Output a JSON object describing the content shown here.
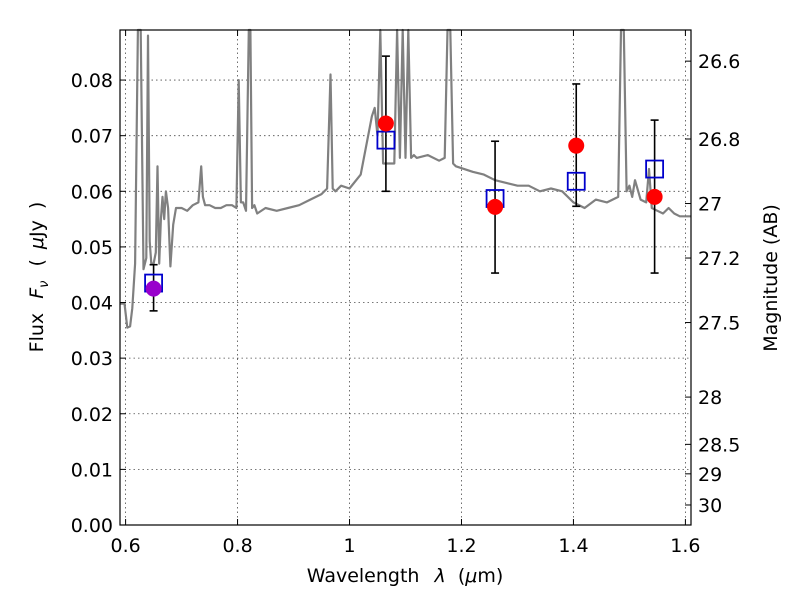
{
  "chart_data": {
    "type": "scatter",
    "xlabel_prefix": "Wavelength",
    "xlabel_symbol": "λ",
    "xlabel_unit_open": "(",
    "xlabel_unit_mu": "μ",
    "xlabel_unit_rest": "m)",
    "ylabel_prefix": "Flux",
    "ylabel_symbol": "F",
    "ylabel_subscript": "ν",
    "ylabel_unit_open": "(",
    "ylabel_unit_mu": "μ",
    "ylabel_unit_rest": "Jy",
    "ylabel_unit_close": ")",
    "y2label": "Magnitude (AB)",
    "xlim": [
      0.59,
      1.61
    ],
    "ylim": [
      0.0,
      0.089
    ],
    "x_ticks": [
      0.6,
      0.8,
      1.0,
      1.2,
      1.4,
      1.6
    ],
    "x_tick_labels": [
      "0.6",
      "0.8",
      "1",
      "1.2",
      "1.4",
      "1.6"
    ],
    "y_ticks": [
      0.0,
      0.01,
      0.02,
      0.03,
      0.04,
      0.05,
      0.06,
      0.07,
      0.08
    ],
    "y_tick_labels": [
      "0.00",
      "0.01",
      "0.02",
      "0.03",
      "0.04",
      "0.05",
      "0.06",
      "0.07",
      "0.08"
    ],
    "y2_ticks": [
      {
        "label": "26.6",
        "flux": 0.0834
      },
      {
        "label": "26.8",
        "flux": 0.0694
      },
      {
        "label": "27",
        "flux": 0.0578
      },
      {
        "label": "27.2",
        "flux": 0.048
      },
      {
        "label": "27.5",
        "flux": 0.0364
      },
      {
        "label": "28",
        "flux": 0.023
      },
      {
        "label": "28.5",
        "flux": 0.0145
      },
      {
        "label": "29",
        "flux": 0.0092
      },
      {
        "label": "30",
        "flux": 0.0036
      }
    ],
    "grid": true,
    "colors": {
      "model_line": "#808080",
      "observed": "#ff0000",
      "model_points": "#0000cc",
      "errorbar": "#000000",
      "overlap": "#9900cc"
    },
    "observed": {
      "marker": "red-circle",
      "x": [
        0.65,
        1.065,
        1.26,
        1.405,
        1.545
      ],
      "y": [
        0.0425,
        0.0722,
        0.0572,
        0.0682,
        0.059
      ],
      "yerr_low": [
        0.0385,
        0.06,
        0.0453,
        0.0573,
        0.0453
      ],
      "yerr_high": [
        0.0468,
        0.0843,
        0.069,
        0.0793,
        0.0728
      ]
    },
    "model_points": {
      "marker": "blue-open-square",
      "x": [
        0.65,
        1.065,
        1.26,
        1.405,
        1.545
      ],
      "y": [
        0.0435,
        0.0692,
        0.0587,
        0.0618,
        0.064
      ]
    },
    "model_spectrum": {
      "x": [
        0.59,
        0.598,
        0.603,
        0.608,
        0.612,
        0.617,
        0.622,
        0.627,
        0.632,
        0.637,
        0.64,
        0.643,
        0.646,
        0.65,
        0.654,
        0.657,
        0.66,
        0.663,
        0.666,
        0.669,
        0.672,
        0.676,
        0.68,
        0.685,
        0.69,
        0.7,
        0.71,
        0.72,
        0.73,
        0.735,
        0.738,
        0.742,
        0.75,
        0.76,
        0.77,
        0.78,
        0.79,
        0.798,
        0.802,
        0.806,
        0.81,
        0.815,
        0.82,
        0.823,
        0.826,
        0.83,
        0.835,
        0.85,
        0.87,
        0.89,
        0.91,
        0.93,
        0.95,
        0.96,
        0.966,
        0.97,
        0.975,
        0.985,
        1.0,
        1.02,
        1.04,
        1.045,
        1.05,
        1.055,
        1.06,
        1.08,
        1.085,
        1.09,
        1.095,
        1.1,
        1.105,
        1.11,
        1.115,
        1.12,
        1.14,
        1.16,
        1.17,
        1.175,
        1.18,
        1.185,
        1.19,
        1.22,
        1.24,
        1.26,
        1.28,
        1.3,
        1.32,
        1.34,
        1.36,
        1.38,
        1.4,
        1.42,
        1.44,
        1.46,
        1.48,
        1.485,
        1.49,
        1.495,
        1.5,
        1.505,
        1.51,
        1.52,
        1.53,
        1.535,
        1.54,
        1.55,
        1.56,
        1.57,
        1.58,
        1.59,
        1.6,
        1.61
      ],
      "y": [
        0.0398,
        0.0398,
        0.0355,
        0.0357,
        0.039,
        0.047,
        0.089,
        0.089,
        0.046,
        0.048,
        0.088,
        0.051,
        0.047,
        0.047,
        0.049,
        0.0645,
        0.047,
        0.055,
        0.059,
        0.055,
        0.06,
        0.057,
        0.0465,
        0.054,
        0.057,
        0.057,
        0.0565,
        0.0575,
        0.058,
        0.0645,
        0.059,
        0.0575,
        0.0575,
        0.057,
        0.057,
        0.0575,
        0.0575,
        0.057,
        0.08,
        0.058,
        0.058,
        0.0565,
        0.089,
        0.089,
        0.057,
        0.0575,
        0.056,
        0.057,
        0.0565,
        0.057,
        0.0575,
        0.0585,
        0.0595,
        0.0605,
        0.081,
        0.0605,
        0.06,
        0.061,
        0.0605,
        0.063,
        0.0735,
        0.075,
        0.07,
        0.089,
        0.065,
        0.065,
        0.089,
        0.066,
        0.089,
        0.066,
        0.089,
        0.066,
        0.0665,
        0.066,
        0.0665,
        0.0655,
        0.066,
        0.089,
        0.089,
        0.065,
        0.0645,
        0.0635,
        0.063,
        0.062,
        0.0615,
        0.061,
        0.061,
        0.06,
        0.0605,
        0.06,
        0.058,
        0.057,
        0.0585,
        0.058,
        0.059,
        0.089,
        0.089,
        0.06,
        0.061,
        0.059,
        0.062,
        0.0585,
        0.058,
        0.064,
        0.057,
        0.0565,
        0.056,
        0.057,
        0.056,
        0.0555,
        0.0555,
        0.0555
      ]
    }
  }
}
